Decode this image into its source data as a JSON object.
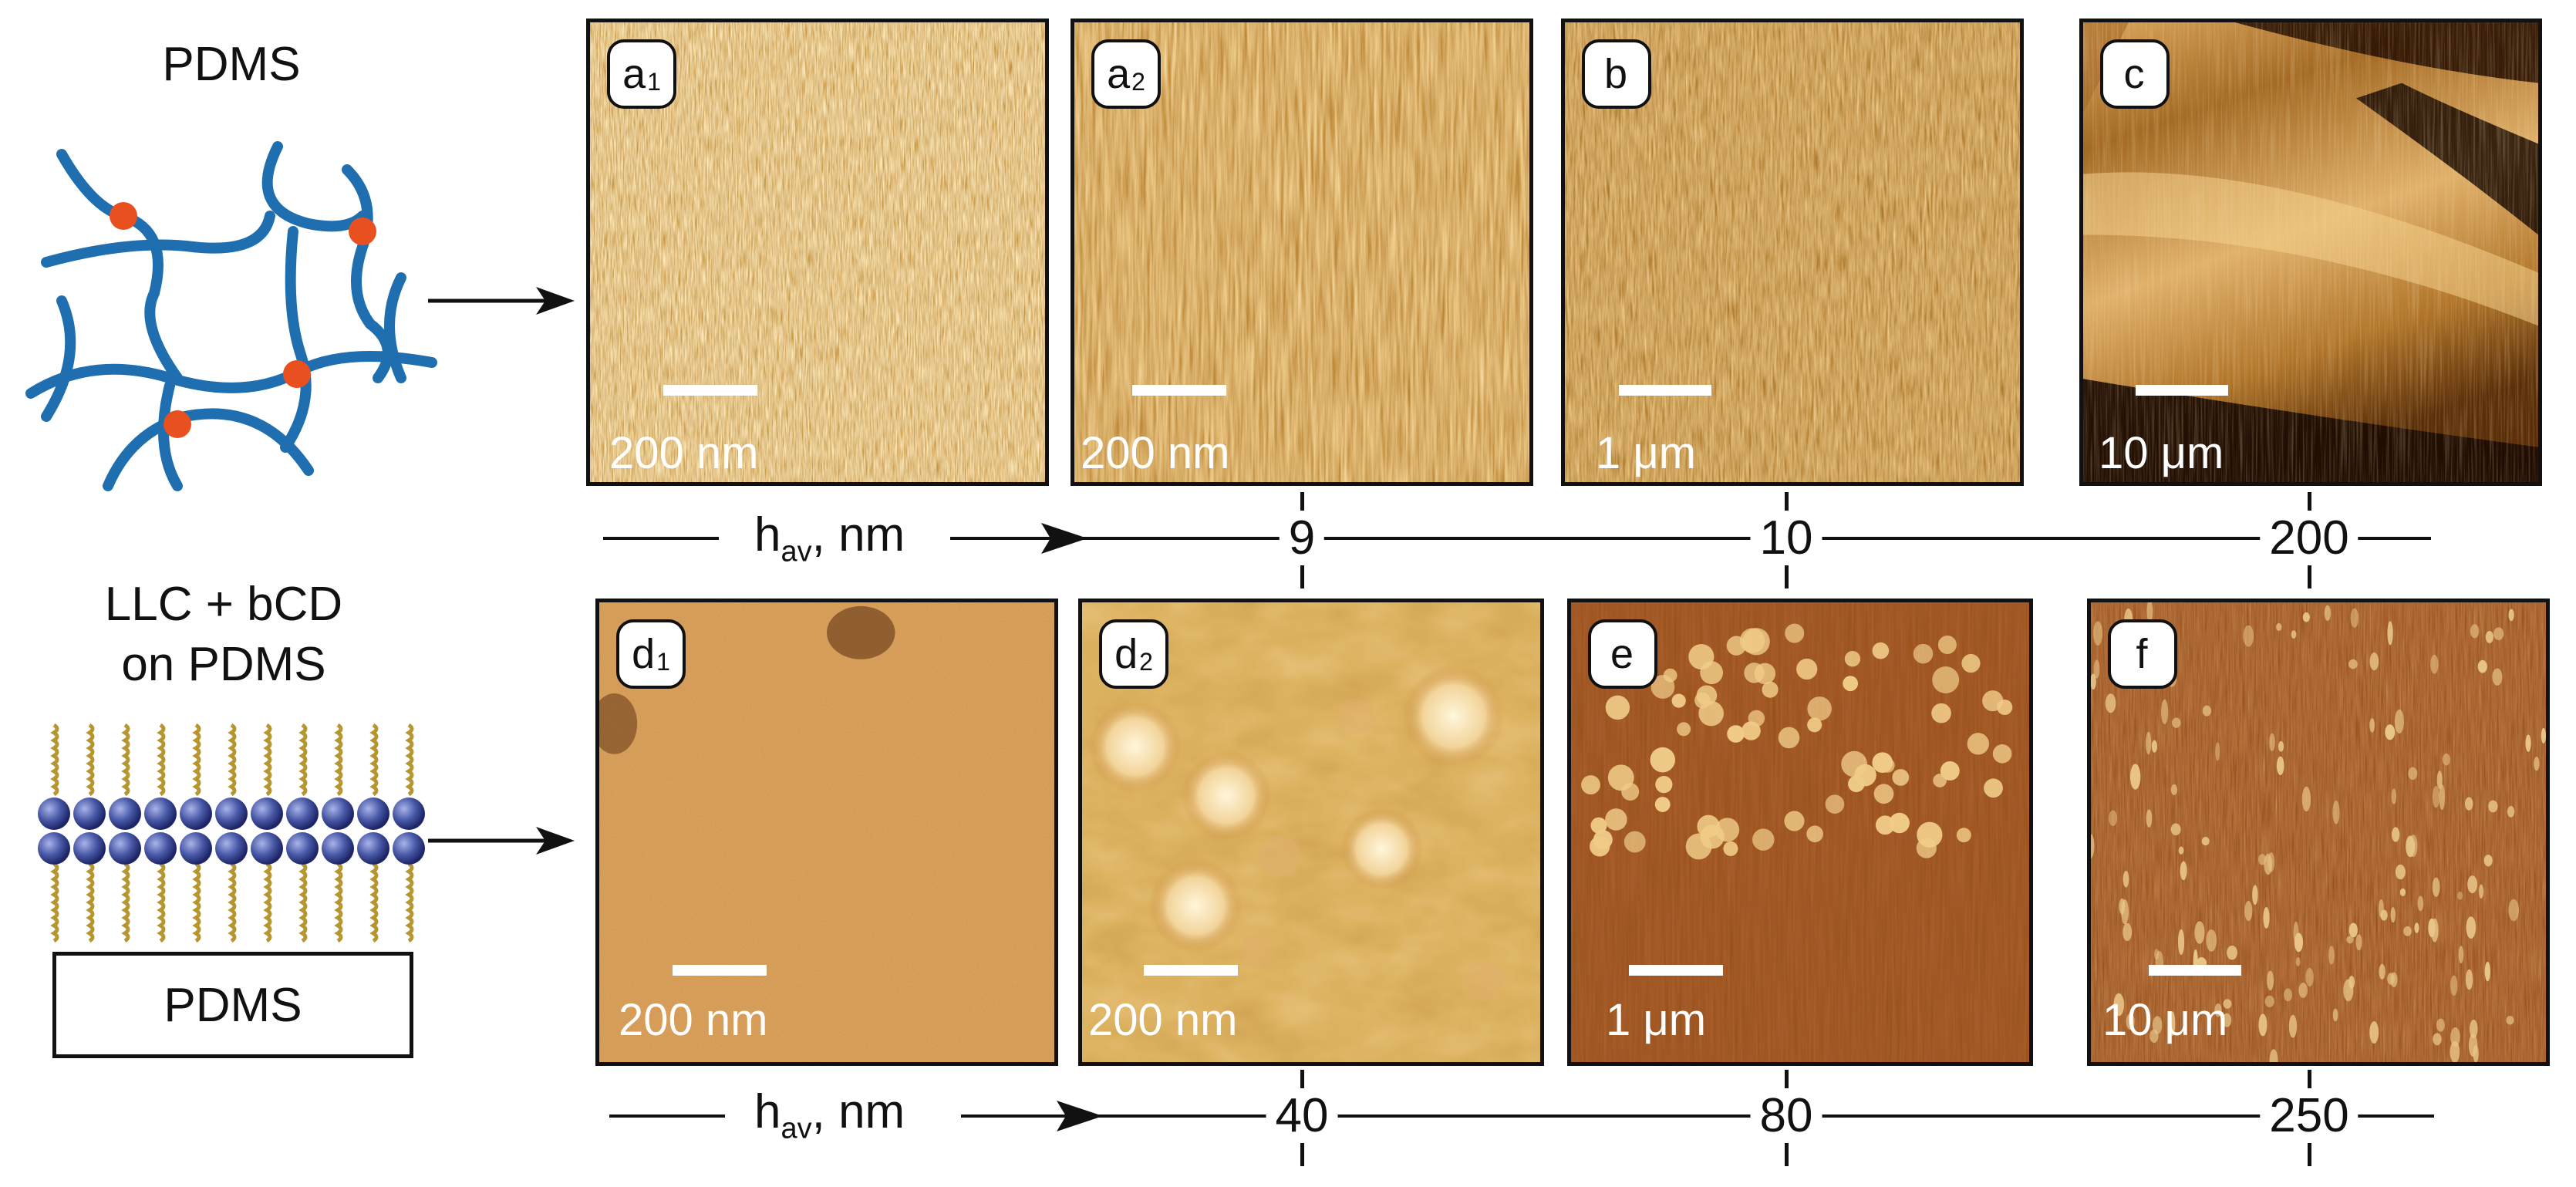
{
  "left": {
    "top_title": "PDMS",
    "bottom_title_line1": "LLC + bCD",
    "bottom_title_line2": "on PDMS",
    "substrate_label": "PDMS"
  },
  "panels_top": [
    {
      "tag": "a",
      "sub": "1",
      "scale": "200 nm"
    },
    {
      "tag": "a",
      "sub": "2",
      "scale": "200 nm"
    },
    {
      "tag": "b",
      "sub": "",
      "scale": "1 μm"
    },
    {
      "tag": "c",
      "sub": "",
      "scale": "10 μm"
    }
  ],
  "panels_bottom": [
    {
      "tag": "d",
      "sub": "1",
      "scale": "200 nm"
    },
    {
      "tag": "d",
      "sub": "2",
      "scale": "200 nm"
    },
    {
      "tag": "e",
      "sub": "",
      "scale": "1 μm"
    },
    {
      "tag": "f",
      "sub": "",
      "scale": "10 μm"
    }
  ],
  "axis_top": {
    "label_main": "h",
    "label_sub": "av",
    "label_unit": ", nm",
    "ticks": [
      "9",
      "10",
      "200"
    ]
  },
  "axis_bottom": {
    "label_main": "h",
    "label_sub": "av",
    "label_unit": ", nm",
    "ticks": [
      "40",
      "80",
      "250"
    ]
  },
  "colors": {
    "polymer_chain": "#1f6fb0",
    "crosslink": "#e8501f",
    "bead": "#4a5aa8",
    "tail": "#b8962e",
    "afm_dark": "#3a1a04",
    "afm_mid": "#9a5a14",
    "afm_light": "#f3d9a0"
  }
}
